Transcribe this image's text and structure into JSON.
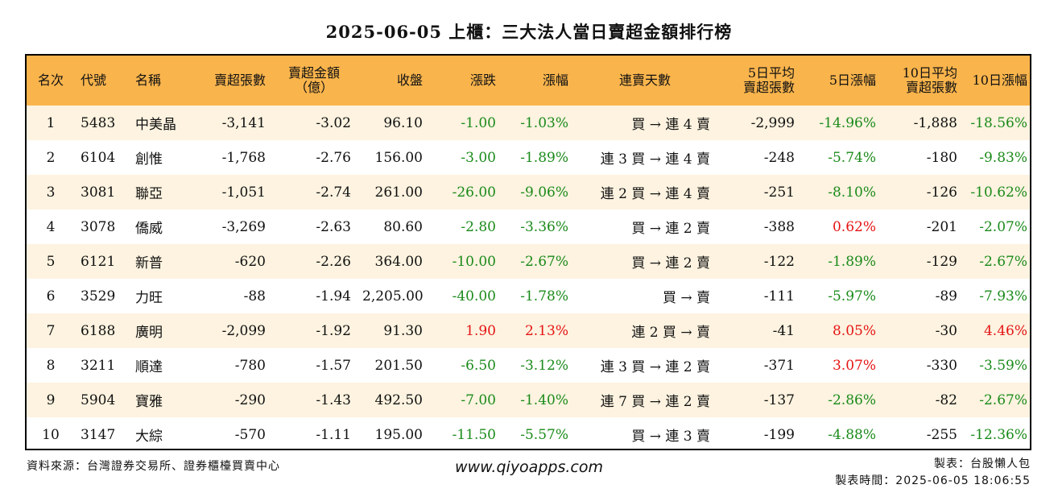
{
  "title": "2025-06-05 上櫃：三大法人當日賣超金額排行榜",
  "headers": {
    "rank": "名次",
    "code": "代號",
    "name": "名稱",
    "sell_shares": "賣超張數",
    "sell_amount_1": "賣超金額",
    "sell_amount_2": "（億）",
    "close": "收盤",
    "change": "漲跌",
    "change_pct": "漲幅",
    "streak": "連賣天數",
    "avg5_1": "5日平均",
    "avg5_2": "賣超張數",
    "pct5": "5日漲幅",
    "avg10_1": "10日平均",
    "avg10_2": "賣超張數",
    "pct10": "10日漲幅"
  },
  "rows": [
    {
      "rank": "1",
      "code": "5483",
      "name": "中美晶",
      "sell_shares": "-3,141",
      "sell_amount": "-3.02",
      "close": "96.10",
      "change": "-1.00",
      "change_pct": "-1.03%",
      "streak": "買 → 連 4 賣",
      "avg5": "-2,999",
      "pct5": "-14.96%",
      "avg10": "-1,888",
      "pct10": "-18.56%"
    },
    {
      "rank": "2",
      "code": "6104",
      "name": "創惟",
      "sell_shares": "-1,768",
      "sell_amount": "-2.76",
      "close": "156.00",
      "change": "-3.00",
      "change_pct": "-1.89%",
      "streak": "連 3 買 → 連 4 賣",
      "avg5": "-248",
      "pct5": "-5.74%",
      "avg10": "-180",
      "pct10": "-9.83%"
    },
    {
      "rank": "3",
      "code": "3081",
      "name": "聯亞",
      "sell_shares": "-1,051",
      "sell_amount": "-2.74",
      "close": "261.00",
      "change": "-26.00",
      "change_pct": "-9.06%",
      "streak": "連 2 買 → 連 4 賣",
      "avg5": "-251",
      "pct5": "-8.10%",
      "avg10": "-126",
      "pct10": "-10.62%"
    },
    {
      "rank": "4",
      "code": "3078",
      "name": "僑威",
      "sell_shares": "-3,269",
      "sell_amount": "-2.63",
      "close": "80.60",
      "change": "-2.80",
      "change_pct": "-3.36%",
      "streak": "買 → 連 2 賣",
      "avg5": "-388",
      "pct5": "0.62%",
      "avg10": "-201",
      "pct10": "-2.07%"
    },
    {
      "rank": "5",
      "code": "6121",
      "name": "新普",
      "sell_shares": "-620",
      "sell_amount": "-2.26",
      "close": "364.00",
      "change": "-10.00",
      "change_pct": "-2.67%",
      "streak": "買 → 連 2 賣",
      "avg5": "-122",
      "pct5": "-1.89%",
      "avg10": "-129",
      "pct10": "-2.67%"
    },
    {
      "rank": "6",
      "code": "3529",
      "name": "力旺",
      "sell_shares": "-88",
      "sell_amount": "-1.94",
      "close": "2,205.00",
      "change": "-40.00",
      "change_pct": "-1.78%",
      "streak": "買 → 賣",
      "avg5": "-111",
      "pct5": "-5.97%",
      "avg10": "-89",
      "pct10": "-7.93%"
    },
    {
      "rank": "7",
      "code": "6188",
      "name": "廣明",
      "sell_shares": "-2,099",
      "sell_amount": "-1.92",
      "close": "91.30",
      "change": "1.90",
      "change_pct": "2.13%",
      "streak": "連 2 買 → 賣",
      "avg5": "-41",
      "pct5": "8.05%",
      "avg10": "-30",
      "pct10": "4.46%"
    },
    {
      "rank": "8",
      "code": "3211",
      "name": "順達",
      "sell_shares": "-780",
      "sell_amount": "-1.57",
      "close": "201.50",
      "change": "-6.50",
      "change_pct": "-3.12%",
      "streak": "連 3 買 → 連 2 賣",
      "avg5": "-371",
      "pct5": "3.07%",
      "avg10": "-330",
      "pct10": "-3.59%"
    },
    {
      "rank": "9",
      "code": "5904",
      "name": "寶雅",
      "sell_shares": "-290",
      "sell_amount": "-1.43",
      "close": "492.50",
      "change": "-7.00",
      "change_pct": "-1.40%",
      "streak": "連 7 買 → 連 2 賣",
      "avg5": "-137",
      "pct5": "-2.86%",
      "avg10": "-82",
      "pct10": "-2.67%"
    },
    {
      "rank": "10",
      "code": "3147",
      "name": "大綜",
      "sell_shares": "-570",
      "sell_amount": "-1.11",
      "close": "195.00",
      "change": "-11.50",
      "change_pct": "-5.57%",
      "streak": "買 → 連 3 賣",
      "avg5": "-199",
      "pct5": "-4.88%",
      "avg10": "-255",
      "pct10": "-12.36%"
    }
  ],
  "colors": {
    "header_bg": "#f9b44c",
    "row_alt_bg": "#fdf3e0",
    "negative": "#1a8a1a",
    "positive": "#e51414"
  },
  "footer": {
    "source": "資料來源：台灣證券交易所、證券櫃檯買賣中心",
    "website": "www.qiyoapps.com",
    "maker": "製表：台股懶人包",
    "made_time": "製表時間：2025-06-05 18:06:55"
  }
}
